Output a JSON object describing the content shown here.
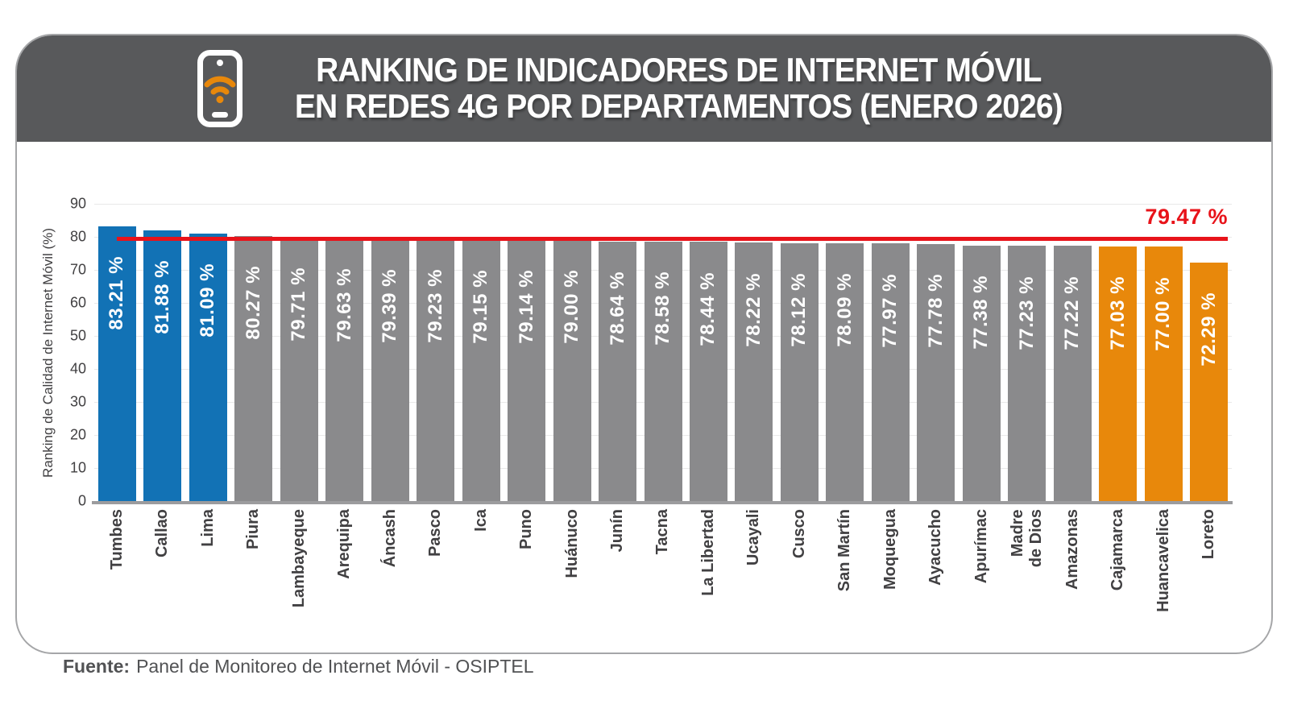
{
  "header": {
    "bg_color": "#58595B",
    "icon": "phone-wifi-icon",
    "icon_color": "#FFFFFF",
    "icon_wifi_color": "#E8880B",
    "title_line1": "RANKING DE INDICADORES DE INTERNET MÓVIL",
    "title_line2": "EN REDES 4G POR DEPARTAMENTOS (ENERO 2026)"
  },
  "chart_data": {
    "type": "bar",
    "title": "RANKING DE INDICADORES DE INTERNET MÓVIL EN REDES 4G POR DEPARTAMENTOS (ENERO 2026)",
    "xlabel": "",
    "ylabel": "Ranking de Calidad de Internet Móvil (%)",
    "ylim": [
      0,
      90
    ],
    "yticks": [
      0,
      10,
      20,
      30,
      40,
      50,
      60,
      70,
      80,
      90
    ],
    "grid": true,
    "legend": false,
    "value_label_color": "#FFFFFF",
    "axis_text_color": "#414042",
    "colors": {
      "top": "#1272B5",
      "mid": "#8A8A8C",
      "bottom": "#E8880B"
    },
    "reference_line": {
      "value": 79.47,
      "label": "79.47 %",
      "color": "#E8131A"
    },
    "bars": [
      {
        "department": "Tumbes",
        "value": 83.21,
        "value_label": "83.21 %",
        "group": "top"
      },
      {
        "department": "Callao",
        "value": 81.88,
        "value_label": "81.88 %",
        "group": "top"
      },
      {
        "department": "Lima",
        "value": 81.09,
        "value_label": "81.09 %",
        "group": "top"
      },
      {
        "department": "Piura",
        "value": 80.27,
        "value_label": "80.27 %",
        "group": "mid"
      },
      {
        "department": "Lambayeque",
        "value": 79.71,
        "value_label": "79.71 %",
        "group": "mid"
      },
      {
        "department": "Arequipa",
        "value": 79.63,
        "value_label": "79.63 %",
        "group": "mid"
      },
      {
        "department": "Áncash",
        "value": 79.39,
        "value_label": "79.39 %",
        "group": "mid"
      },
      {
        "department": "Pasco",
        "value": 79.23,
        "value_label": "79.23 %",
        "group": "mid"
      },
      {
        "department": "Ica",
        "value": 79.15,
        "value_label": "79.15 %",
        "group": "mid"
      },
      {
        "department": "Puno",
        "value": 79.14,
        "value_label": "79.14 %",
        "group": "mid"
      },
      {
        "department": "Huánuco",
        "value": 79.0,
        "value_label": "79.00 %",
        "group": "mid"
      },
      {
        "department": "Junín",
        "value": 78.64,
        "value_label": "78.64 %",
        "group": "mid"
      },
      {
        "department": "Tacna",
        "value": 78.58,
        "value_label": "78.58 %",
        "group": "mid"
      },
      {
        "department": "La Libertad",
        "value": 78.44,
        "value_label": "78.44 %",
        "group": "mid"
      },
      {
        "department": "Ucayali",
        "value": 78.22,
        "value_label": "78.22 %",
        "group": "mid"
      },
      {
        "department": "Cusco",
        "value": 78.12,
        "value_label": "78.12 %",
        "group": "mid"
      },
      {
        "department": "San Martín",
        "value": 78.09,
        "value_label": "78.09 %",
        "group": "mid"
      },
      {
        "department": "Moquegua",
        "value": 77.97,
        "value_label": "77.97 %",
        "group": "mid"
      },
      {
        "department": "Ayacucho",
        "value": 77.78,
        "value_label": "77.78 %",
        "group": "mid"
      },
      {
        "department": "Apurímac",
        "value": 77.38,
        "value_label": "77.38 %",
        "group": "mid"
      },
      {
        "department": "Madre de Dios",
        "label_lines": [
          "Madre",
          "de Dios"
        ],
        "value": 77.23,
        "value_label": "77.23 %",
        "group": "mid"
      },
      {
        "department": "Amazonas",
        "value": 77.22,
        "value_label": "77.22 %",
        "group": "mid"
      },
      {
        "department": "Cajamarca",
        "value": 77.03,
        "value_label": "77.03 %",
        "group": "bottom"
      },
      {
        "department": "Huancavelica",
        "value": 77.0,
        "value_label": "77.00 %",
        "group": "bottom"
      },
      {
        "department": "Loreto",
        "value": 72.29,
        "value_label": "72.29 %",
        "group": "bottom"
      }
    ]
  },
  "footer": {
    "source_label": "Fuente:",
    "source_text": "Panel de Monitoreo de Internet Móvil - OSIPTEL"
  }
}
